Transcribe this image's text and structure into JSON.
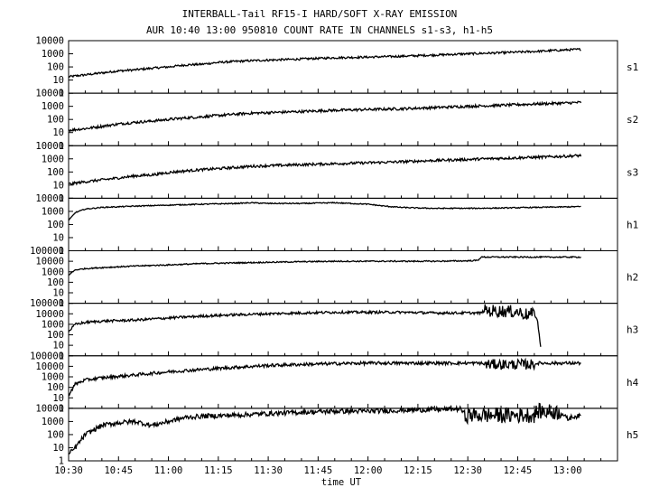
{
  "chart_data": {
    "type": "line",
    "title": "INTERBALL-Tail RF15-I HARD/SOFT X-RAY EMISSION",
    "subtitle": "AUR 10:40 13:00 950810  COUNT RATE IN CHANNELS s1-s3, h1-h5",
    "xlabel": "time UT",
    "x_ticks": [
      "10:30",
      "10:45",
      "11:00",
      "11:15",
      "11:30",
      "11:45",
      "12:00",
      "12:15",
      "12:30",
      "12:45",
      "13:00"
    ],
    "x_range_min": [
      0,
      165
    ],
    "y_scale": "log",
    "panels": [
      {
        "channel": "s1",
        "ylim": [
          1,
          10000
        ],
        "yticks": [
          "10000",
          "1000",
          "100",
          "10",
          "1"
        ],
        "points": [
          [
            0,
            18
          ],
          [
            5,
            25
          ],
          [
            10,
            35
          ],
          [
            15,
            50
          ],
          [
            20,
            60
          ],
          [
            25,
            80
          ],
          [
            30,
            100
          ],
          [
            35,
            140
          ],
          [
            40,
            160
          ],
          [
            45,
            220
          ],
          [
            50,
            260
          ],
          [
            55,
            300
          ],
          [
            60,
            330
          ],
          [
            70,
            400
          ],
          [
            80,
            500
          ],
          [
            90,
            560
          ],
          [
            100,
            650
          ],
          [
            110,
            800
          ],
          [
            120,
            1000
          ],
          [
            130,
            1200
          ],
          [
            140,
            1500
          ],
          [
            150,
            2000
          ],
          [
            154,
            2200
          ]
        ],
        "noise": 0.08
      },
      {
        "channel": "s2",
        "ylim": [
          1,
          10000
        ],
        "yticks": [
          "10000",
          "1000",
          "100",
          "10",
          "1"
        ],
        "points": [
          [
            0,
            15
          ],
          [
            5,
            20
          ],
          [
            10,
            30
          ],
          [
            15,
            45
          ],
          [
            20,
            60
          ],
          [
            25,
            75
          ],
          [
            30,
            100
          ],
          [
            35,
            130
          ],
          [
            40,
            160
          ],
          [
            45,
            200
          ],
          [
            50,
            250
          ],
          [
            55,
            300
          ],
          [
            60,
            330
          ],
          [
            70,
            400
          ],
          [
            80,
            500
          ],
          [
            90,
            570
          ],
          [
            100,
            650
          ],
          [
            110,
            800
          ],
          [
            120,
            1000
          ],
          [
            130,
            1200
          ],
          [
            140,
            1500
          ],
          [
            150,
            1800
          ],
          [
            154,
            2000
          ]
        ],
        "noise": 0.1
      },
      {
        "channel": "s3",
        "ylim": [
          1,
          10000
        ],
        "yticks": [
          "10000",
          "1000",
          "100",
          "10",
          "1"
        ],
        "points": [
          [
            0,
            12
          ],
          [
            5,
            18
          ],
          [
            10,
            25
          ],
          [
            15,
            35
          ],
          [
            20,
            50
          ],
          [
            25,
            60
          ],
          [
            30,
            90
          ],
          [
            35,
            120
          ],
          [
            40,
            150
          ],
          [
            45,
            180
          ],
          [
            50,
            220
          ],
          [
            55,
            270
          ],
          [
            60,
            300
          ],
          [
            70,
            360
          ],
          [
            80,
            430
          ],
          [
            90,
            500
          ],
          [
            100,
            600
          ],
          [
            110,
            750
          ],
          [
            120,
            900
          ],
          [
            130,
            1100
          ],
          [
            140,
            1300
          ],
          [
            150,
            1600
          ],
          [
            154,
            1800
          ]
        ],
        "noise": 0.1
      },
      {
        "channel": "h1",
        "ylim": [
          1,
          10000
        ],
        "yticks": [
          "10000",
          "1000",
          "100",
          "10",
          "1"
        ],
        "points": [
          [
            0,
            200
          ],
          [
            2,
            800
          ],
          [
            5,
            1500
          ],
          [
            10,
            2000
          ],
          [
            20,
            2500
          ],
          [
            30,
            3000
          ],
          [
            40,
            3500
          ],
          [
            50,
            4000
          ],
          [
            55,
            4500
          ],
          [
            60,
            4000
          ],
          [
            70,
            4000
          ],
          [
            80,
            4500
          ],
          [
            85,
            4000
          ],
          [
            90,
            3500
          ],
          [
            95,
            2500
          ],
          [
            100,
            2000
          ],
          [
            105,
            1800
          ],
          [
            110,
            1700
          ],
          [
            120,
            1700
          ],
          [
            130,
            1800
          ],
          [
            140,
            2000
          ],
          [
            150,
            2200
          ],
          [
            154,
            2300
          ]
        ],
        "noise": 0.04
      },
      {
        "channel": "h2",
        "ylim": [
          1,
          100000
        ],
        "yticks": [
          "100000",
          "10000",
          "1000",
          "100",
          "10",
          "1"
        ],
        "points": [
          [
            0,
            500
          ],
          [
            2,
            1500
          ],
          [
            5,
            2000
          ],
          [
            10,
            2500
          ],
          [
            20,
            3500
          ],
          [
            30,
            4500
          ],
          [
            40,
            6000
          ],
          [
            50,
            7000
          ],
          [
            60,
            8000
          ],
          [
            70,
            9000
          ],
          [
            80,
            10000
          ],
          [
            90,
            10000
          ],
          [
            100,
            10000
          ],
          [
            110,
            10000
          ],
          [
            120,
            11000
          ],
          [
            123,
            12000
          ],
          [
            124,
            25000
          ],
          [
            130,
            25000
          ],
          [
            140,
            25000
          ],
          [
            150,
            25000
          ],
          [
            154,
            25000
          ]
        ],
        "noise": 0.06
      },
      {
        "channel": "h3",
        "ylim": [
          1,
          100000
        ],
        "yticks": [
          "100000",
          "10000",
          "1000",
          "100",
          "10",
          "1"
        ],
        "points": [
          [
            0,
            200
          ],
          [
            2,
            1000
          ],
          [
            5,
            1500
          ],
          [
            10,
            2000
          ],
          [
            20,
            2500
          ],
          [
            30,
            4000
          ],
          [
            40,
            6000
          ],
          [
            50,
            8000
          ],
          [
            60,
            10000
          ],
          [
            70,
            12000
          ],
          [
            80,
            14000
          ],
          [
            90,
            14000
          ],
          [
            100,
            14000
          ],
          [
            110,
            12000
          ],
          [
            124,
            12000
          ],
          [
            125,
            20000
          ],
          [
            130,
            18000
          ],
          [
            135,
            15000
          ],
          [
            138,
            8000
          ],
          [
            140,
            10000
          ],
          [
            141,
            2000
          ],
          [
            142,
            3
          ]
        ],
        "noise": 0.12,
        "noisy_range": [
          125,
          140
        ],
        "noisy_amplitude": 0.6
      },
      {
        "channel": "h4",
        "ylim": [
          1,
          100000
        ],
        "yticks": [
          "100000",
          "10000",
          "1000",
          "100",
          "10",
          "1"
        ],
        "points": [
          [
            0,
            20
          ],
          [
            2,
            200
          ],
          [
            5,
            500
          ],
          [
            10,
            800
          ],
          [
            20,
            1500
          ],
          [
            30,
            3000
          ],
          [
            40,
            5000
          ],
          [
            50,
            8000
          ],
          [
            60,
            12000
          ],
          [
            70,
            15000
          ],
          [
            80,
            18000
          ],
          [
            90,
            20000
          ],
          [
            100,
            20000
          ],
          [
            110,
            20000
          ],
          [
            124,
            20000
          ],
          [
            125,
            15000
          ],
          [
            140,
            15000
          ],
          [
            141,
            20000
          ],
          [
            150,
            20000
          ],
          [
            154,
            20000
          ]
        ],
        "noise": 0.15,
        "noisy_range": [
          125,
          140
        ],
        "noisy_amplitude": 0.5
      },
      {
        "channel": "h5",
        "ylim": [
          1,
          10000
        ],
        "yticks": [
          "10000",
          "1000",
          "100",
          "10",
          "1"
        ],
        "points": [
          [
            0,
            3
          ],
          [
            2,
            10
          ],
          [
            5,
            100
          ],
          [
            10,
            500
          ],
          [
            15,
            800
          ],
          [
            20,
            1000
          ],
          [
            25,
            500
          ],
          [
            30,
            1000
          ],
          [
            35,
            2000
          ],
          [
            40,
            2500
          ],
          [
            50,
            3000
          ],
          [
            60,
            4000
          ],
          [
            70,
            5000
          ],
          [
            80,
            6000
          ],
          [
            90,
            6000
          ],
          [
            100,
            7000
          ],
          [
            110,
            8000
          ],
          [
            118,
            9000
          ],
          [
            119,
            3000
          ],
          [
            140,
            3000
          ],
          [
            141,
            6000
          ],
          [
            148,
            5000
          ],
          [
            150,
            1500
          ],
          [
            152,
            2500
          ],
          [
            154,
            2500
          ]
        ],
        "noise": 0.18,
        "noisy_range": [
          119,
          148
        ],
        "noisy_amplitude": 0.6
      }
    ]
  }
}
